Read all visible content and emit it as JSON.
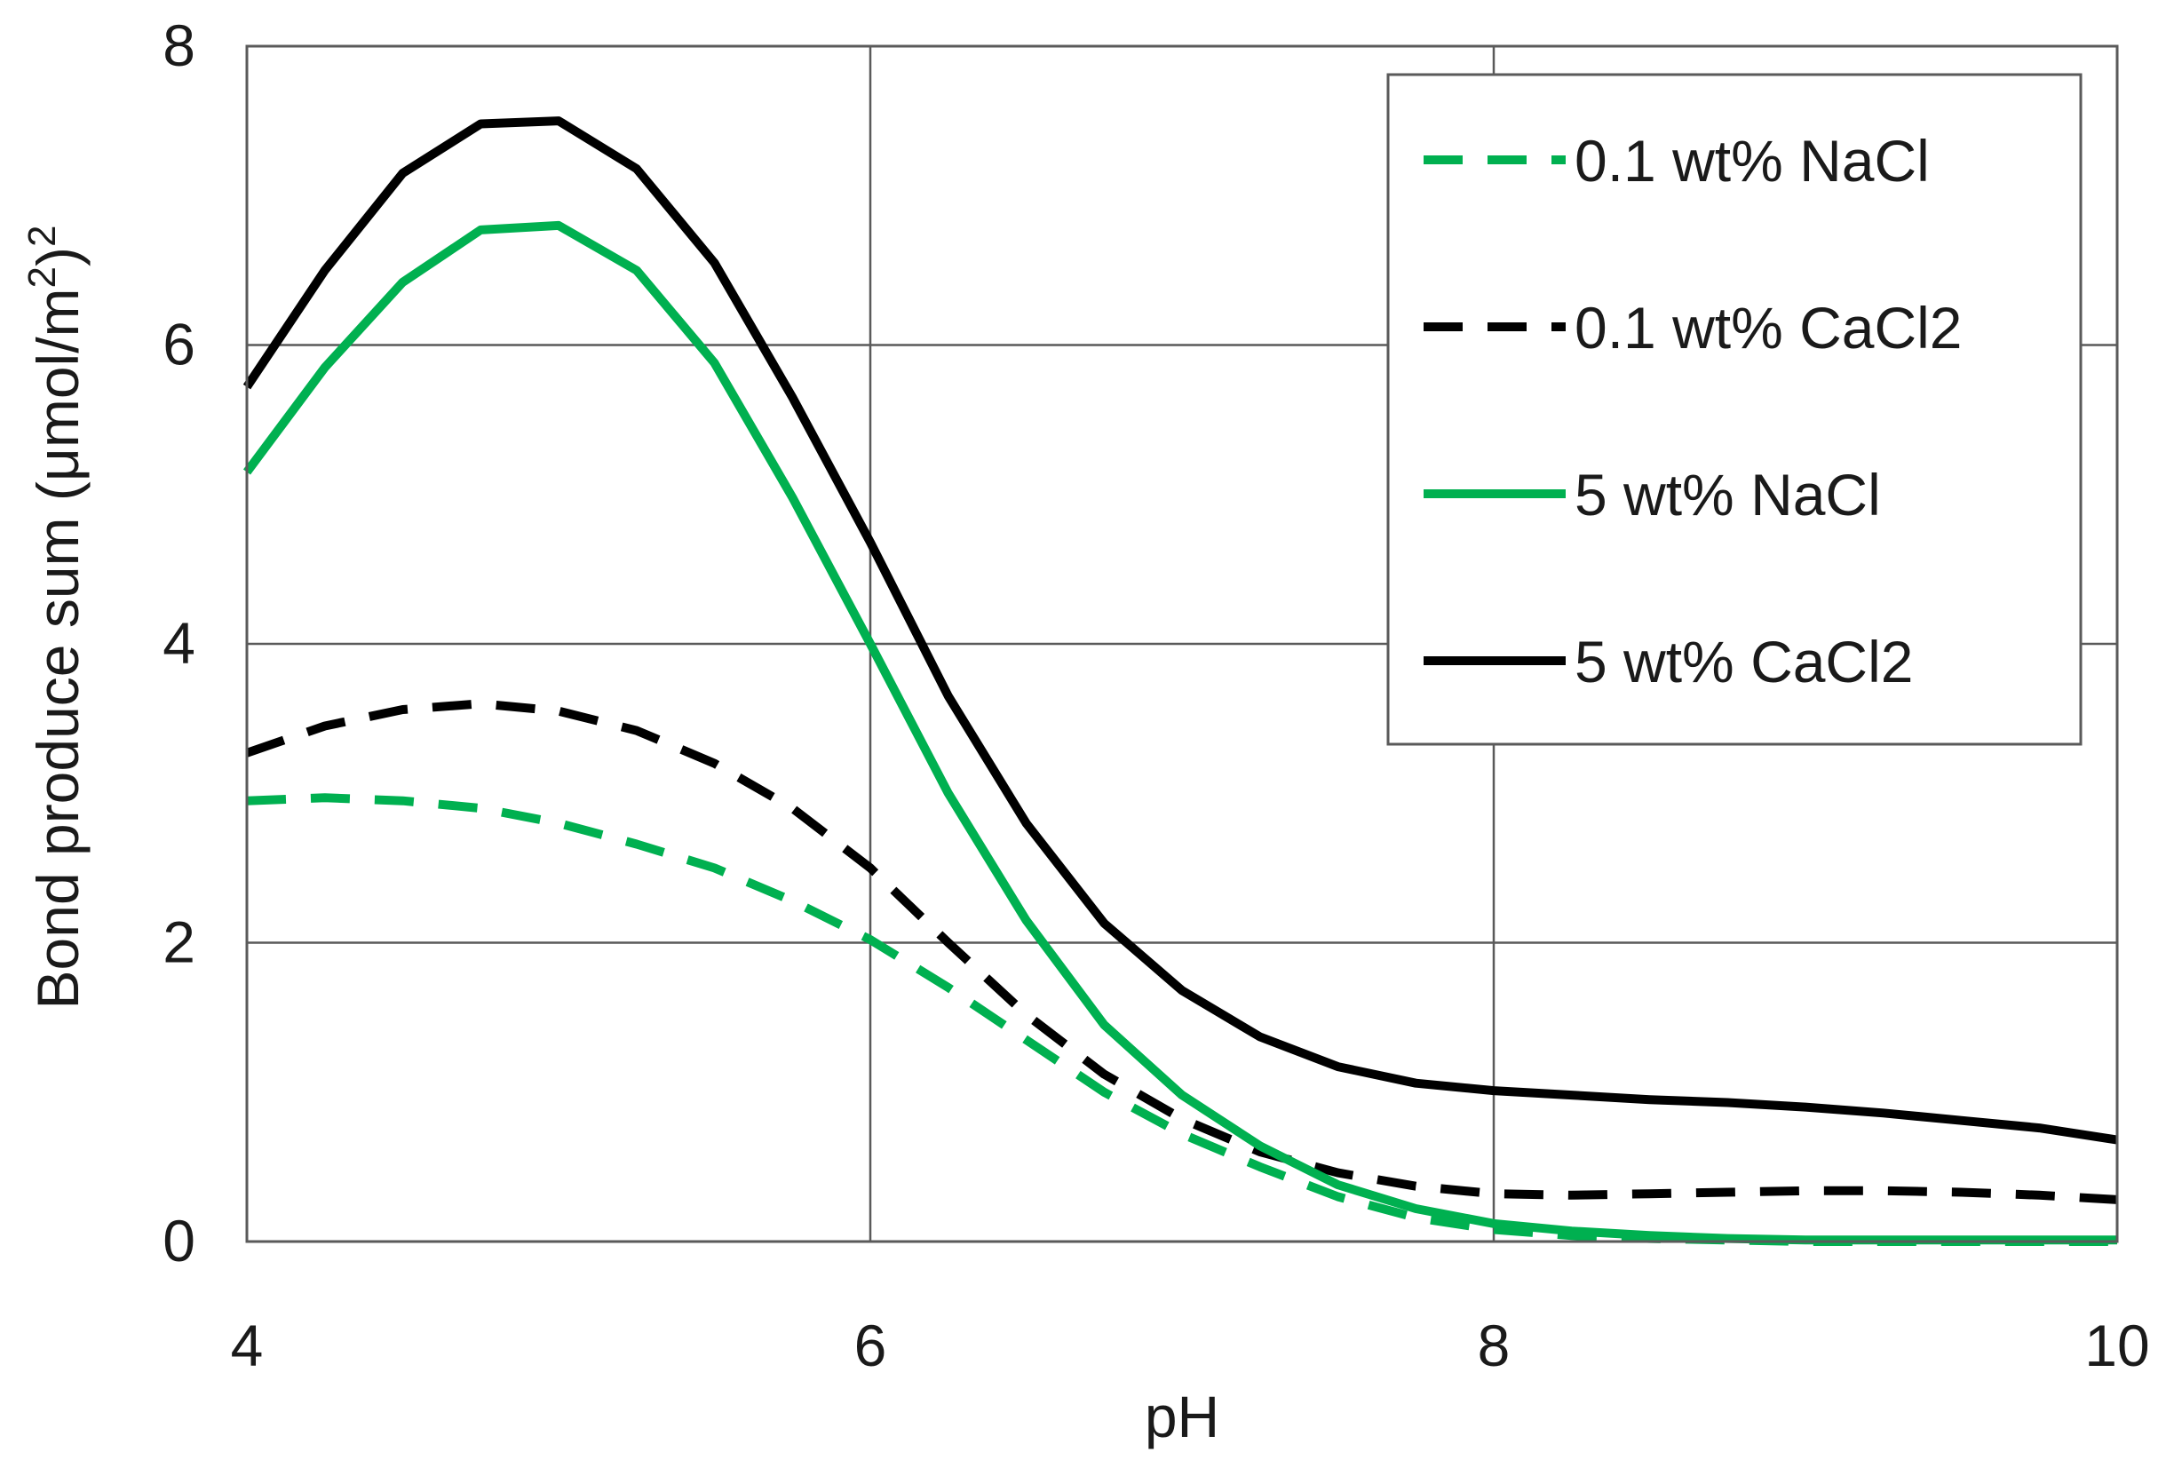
{
  "chart_data": {
    "type": "line",
    "title": "",
    "xlabel": "pH",
    "ylabel_main": "Bond produce sum (μmol/m",
    "ylabel_sup": "2",
    "ylabel_tail": ")",
    "ylabel_sup2": "2",
    "xlim": [
      4,
      10
    ],
    "ylim": [
      0,
      8
    ],
    "xticks": [
      "4",
      "6",
      "8",
      "10"
    ],
    "yticks": [
      "0",
      "2",
      "4",
      "6",
      "8"
    ],
    "xtick_values": [
      4,
      6,
      8,
      10
    ],
    "ytick_values": [
      0,
      2,
      4,
      6,
      8
    ],
    "grid": true,
    "legend_position": "top-right",
    "series": [
      {
        "name": "0.1 wt% NaCl",
        "color": "#00b050",
        "style": "dashed",
        "x": [
          4.0,
          4.25,
          4.5,
          4.75,
          5.0,
          5.25,
          5.5,
          5.75,
          6.0,
          6.25,
          6.5,
          6.75,
          7.0,
          7.25,
          7.5,
          7.75,
          8.0,
          8.25,
          8.5,
          8.75,
          9.0,
          9.25,
          9.5,
          9.75,
          10.0
        ],
        "y": [
          2.95,
          2.97,
          2.95,
          2.9,
          2.8,
          2.66,
          2.5,
          2.28,
          2.02,
          1.7,
          1.35,
          1.0,
          0.72,
          0.5,
          0.3,
          0.16,
          0.08,
          0.04,
          0.02,
          0.01,
          0.0,
          0.0,
          0.0,
          0.0,
          0.0
        ]
      },
      {
        "name": "0.1 wt% CaCl2",
        "color": "#000000",
        "style": "dashed",
        "x": [
          4.0,
          4.25,
          4.5,
          4.75,
          5.0,
          5.25,
          5.5,
          5.75,
          6.0,
          6.25,
          6.5,
          6.75,
          7.0,
          7.25,
          7.5,
          7.75,
          8.0,
          8.25,
          8.5,
          8.75,
          9.0,
          9.25,
          9.5,
          9.75,
          10.0
        ],
        "y": [
          3.27,
          3.45,
          3.56,
          3.6,
          3.55,
          3.42,
          3.2,
          2.9,
          2.5,
          2.0,
          1.52,
          1.12,
          0.82,
          0.6,
          0.46,
          0.37,
          0.32,
          0.31,
          0.32,
          0.33,
          0.34,
          0.34,
          0.33,
          0.31,
          0.28
        ]
      },
      {
        "name": "5 wt% NaCl",
        "color": "#00b050",
        "style": "solid",
        "x": [
          4.0,
          4.25,
          4.5,
          4.75,
          5.0,
          5.25,
          5.5,
          5.75,
          6.0,
          6.25,
          6.5,
          6.75,
          7.0,
          7.25,
          7.5,
          7.75,
          8.0,
          8.25,
          8.5,
          8.75,
          9.0,
          9.25,
          9.5,
          9.75,
          10.0
        ],
        "y": [
          5.15,
          5.85,
          6.42,
          6.77,
          6.8,
          6.5,
          5.88,
          4.98,
          4.0,
          3.0,
          2.15,
          1.45,
          0.98,
          0.64,
          0.38,
          0.22,
          0.12,
          0.07,
          0.04,
          0.02,
          0.01,
          0.01,
          0.01,
          0.01,
          0.01
        ]
      },
      {
        "name": "5 wt% CaCl2",
        "color": "#000000",
        "style": "solid",
        "x": [
          4.0,
          4.25,
          4.5,
          4.75,
          5.0,
          5.25,
          5.5,
          5.75,
          6.0,
          6.25,
          6.5,
          6.75,
          7.0,
          7.25,
          7.5,
          7.75,
          8.0,
          8.25,
          8.5,
          8.75,
          9.0,
          9.25,
          9.5,
          9.75,
          10.0
        ],
        "y": [
          5.72,
          6.5,
          7.15,
          7.48,
          7.5,
          7.18,
          6.55,
          5.65,
          4.68,
          3.65,
          2.8,
          2.13,
          1.68,
          1.37,
          1.17,
          1.06,
          1.01,
          0.98,
          0.95,
          0.93,
          0.9,
          0.86,
          0.81,
          0.76,
          0.68
        ]
      }
    ]
  }
}
